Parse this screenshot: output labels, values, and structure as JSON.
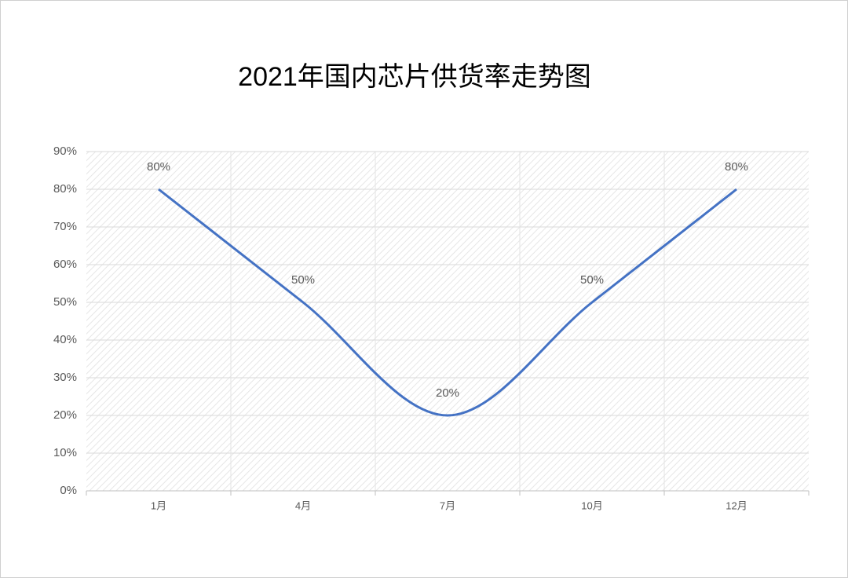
{
  "chart_data": {
    "type": "line",
    "title": "2021年国内芯片供货率走势图",
    "categories": [
      "1月",
      "4月",
      "7月",
      "10月",
      "12月"
    ],
    "series": [
      {
        "name": "供货率",
        "color": "#4472c4",
        "values": [
          80,
          50,
          20,
          50,
          80
        ],
        "value_labels": [
          "80%",
          "50%",
          "20%",
          "50%",
          "80%"
        ]
      }
    ],
    "ylim": [
      0,
      90
    ],
    "yticks": [
      {
        "value": 0,
        "label": "0%"
      },
      {
        "value": 10,
        "label": "10%"
      },
      {
        "value": 20,
        "label": "20%"
      },
      {
        "value": 30,
        "label": "30%"
      },
      {
        "value": 40,
        "label": "40%"
      },
      {
        "value": 50,
        "label": "50%"
      },
      {
        "value": 60,
        "label": "60%"
      },
      {
        "value": 70,
        "label": "70%"
      },
      {
        "value": 80,
        "label": "80%"
      },
      {
        "value": 90,
        "label": "90%"
      }
    ],
    "grid": true,
    "smooth": true
  }
}
